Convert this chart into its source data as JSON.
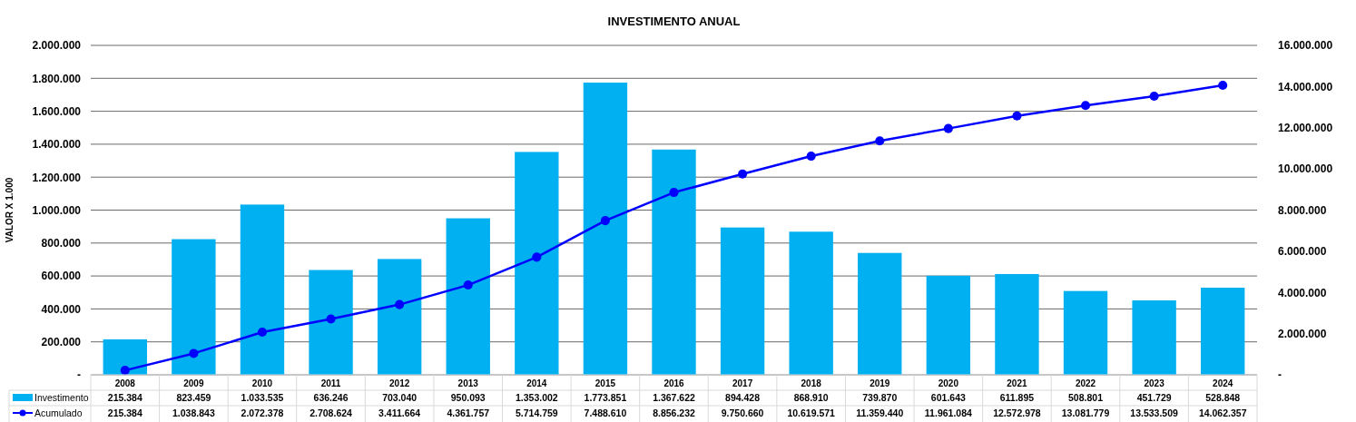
{
  "chart_data": {
    "type": "bar",
    "title": "INVESTIMENTO ANUAL",
    "ylabel": "VALOR X 1.000",
    "categories": [
      "2008",
      "2009",
      "2010",
      "2011",
      "2012",
      "2013",
      "2014",
      "2015",
      "2016",
      "2017",
      "2018",
      "2019",
      "2020",
      "2021",
      "2022",
      "2023",
      "2024"
    ],
    "series": [
      {
        "name": "Investimento",
        "color": "#00b0f0",
        "values": [
          215384,
          823459,
          1033535,
          636246,
          703040,
          950093,
          1353002,
          1773851,
          1367622,
          894428,
          868910,
          739870,
          601643,
          611895,
          508801,
          451729,
          528848
        ],
        "value_labels": [
          "215.384",
          "823.459",
          "1.033.535",
          "636.246",
          "703.040",
          "950.093",
          "1.353.002",
          "1.773.851",
          "1.367.622",
          "894.428",
          "868.910",
          "739.870",
          "601.643",
          "611.895",
          "508.801",
          "451.729",
          "528.848"
        ]
      },
      {
        "name": "Acumulado",
        "type": "line",
        "axis": "y2",
        "color": "#0000ff",
        "marker": "circle",
        "values": [
          215384,
          1038843,
          2072378,
          2708624,
          3411664,
          4361757,
          5714759,
          7488610,
          8856232,
          9750660,
          10619571,
          11359440,
          11961084,
          12572978,
          13081779,
          13533509,
          14062357
        ],
        "value_labels": [
          "215.384",
          "1.038.843",
          "2.072.378",
          "2.708.624",
          "3.411.664",
          "4.361.757",
          "5.714.759",
          "7.488.610",
          "8.856.232",
          "9.750.660",
          "10.619.571",
          "11.359.440",
          "11.961.084",
          "12.572.978",
          "13.081.779",
          "13.533.509",
          "14.062.357"
        ]
      }
    ],
    "ylim": [
      0,
      2000000
    ],
    "yticks": [
      {
        "value": 0,
        "label": "-"
      },
      {
        "value": 200000,
        "label": "200.000"
      },
      {
        "value": 400000,
        "label": "400.000"
      },
      {
        "value": 600000,
        "label": "600.000"
      },
      {
        "value": 800000,
        "label": "800.000"
      },
      {
        "value": 1000000,
        "label": "1.000.000"
      },
      {
        "value": 1200000,
        "label": "1.200.000"
      },
      {
        "value": 1400000,
        "label": "1.400.000"
      },
      {
        "value": 1600000,
        "label": "1.600.000"
      },
      {
        "value": 1800000,
        "label": "1.800.000"
      },
      {
        "value": 2000000,
        "label": "2.000.000"
      }
    ],
    "y2lim": [
      0,
      16000000
    ],
    "y2ticks": [
      {
        "value": 0,
        "label": "-"
      },
      {
        "value": 2000000,
        "label": "2.000.000"
      },
      {
        "value": 4000000,
        "label": "4.000.000"
      },
      {
        "value": 6000000,
        "label": "6.000.000"
      },
      {
        "value": 8000000,
        "label": "8.000.000"
      },
      {
        "value": 10000000,
        "label": "10.000.000"
      },
      {
        "value": 12000000,
        "label": "12.000.000"
      },
      {
        "value": 14000000,
        "label": "14.000.000"
      },
      {
        "value": 16000000,
        "label": "16.000.000"
      }
    ],
    "grid": "y",
    "legend": "bottom left"
  }
}
